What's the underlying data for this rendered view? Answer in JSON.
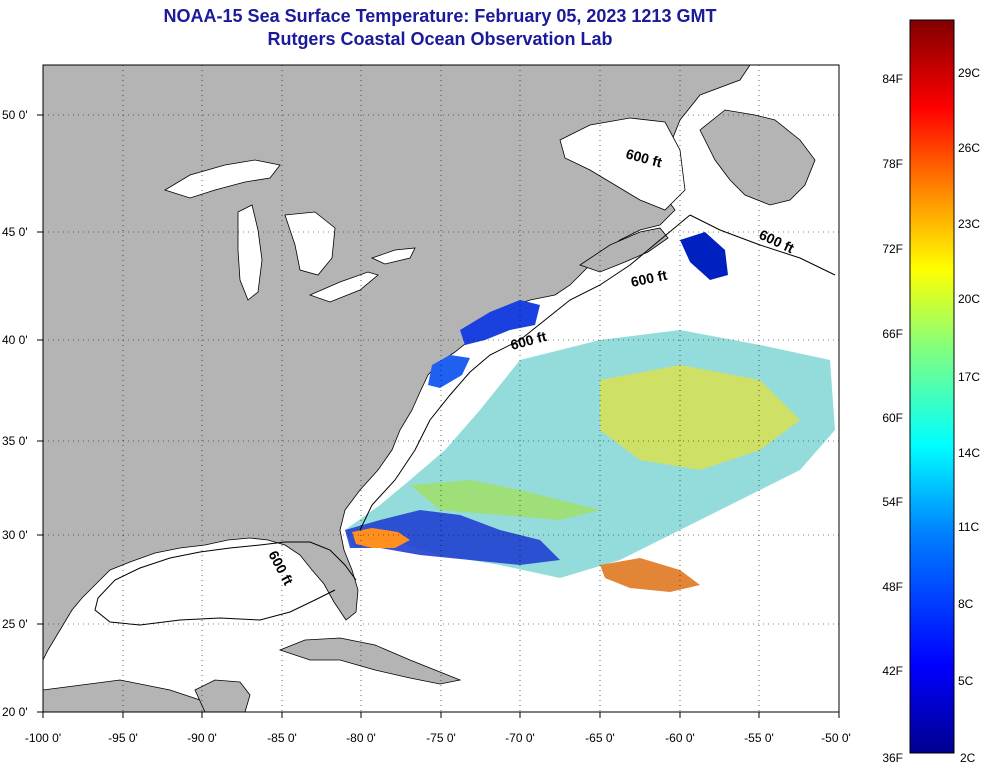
{
  "title_line1": "NOAA-15 Sea Surface Temperature:  February 05, 2023 1213 GMT",
  "title_line2": "Rutgers Coastal Ocean Observation Lab",
  "lon_labels": [
    "-100 0'",
    "-95 0'",
    "-90 0'",
    "-85 0'",
    "-80 0'",
    "-75 0'",
    "-70 0'",
    "-65 0'",
    "-60 0'",
    "-55 0'",
    "-50 0'"
  ],
  "lat_labels": [
    "50 0'",
    "45 0'",
    "40 0'",
    "35 0'",
    "30 0'",
    "25 0'",
    "20 0'"
  ],
  "colorbar": {
    "fahrenheit": [
      "84F",
      "78F",
      "72F",
      "66F",
      "60F",
      "54F",
      "48F",
      "42F",
      "36F"
    ],
    "celsius": [
      "29C",
      "26C",
      "23C",
      "20C",
      "17C",
      "14C",
      "11C",
      "8C",
      "5C",
      "2C"
    ]
  },
  "isobath_label": "600 ft",
  "colors": {
    "land": "#b4b4b4",
    "ocean": "#ffffff",
    "title": "#1a1a9a"
  }
}
